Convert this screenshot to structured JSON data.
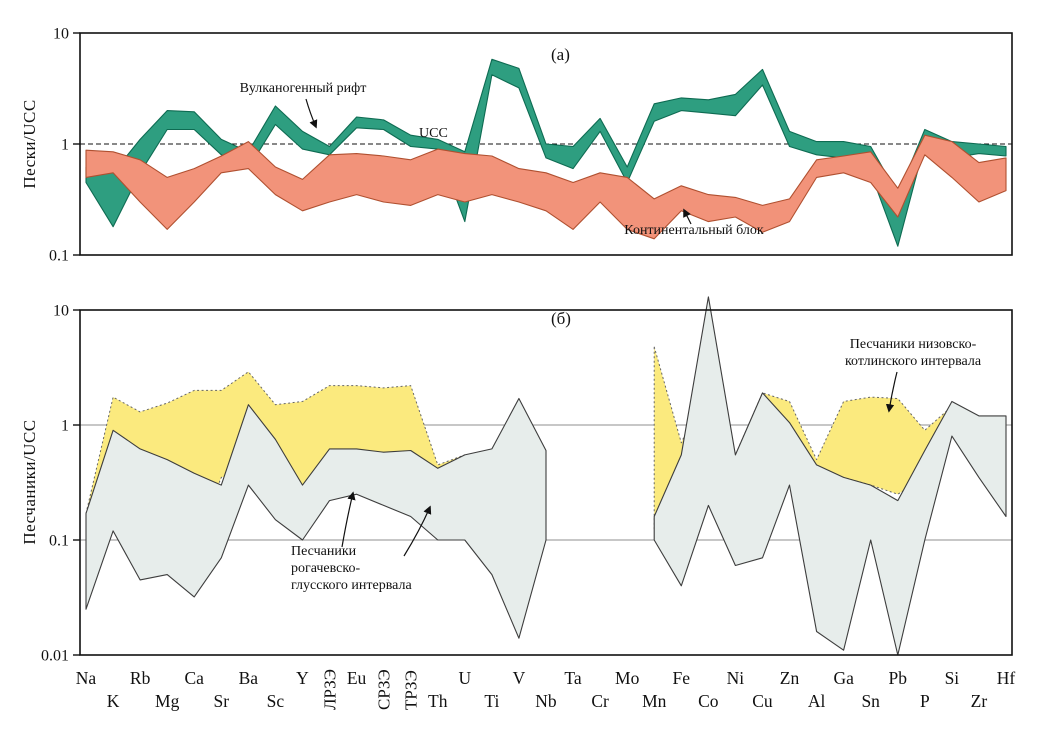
{
  "panel_a": {
    "tag": "(а)",
    "ylabel": "Пески/UCC",
    "ucc_label": "UCC",
    "band1_label": "Вулканогенный рифт",
    "band2_label": "Континентальный блок"
  },
  "panel_b": {
    "tag": "(б)",
    "ylabel": "Песчаники/UCC",
    "band1_label_line1": "Песчаники низовско-",
    "band1_label_line2": "котлинского интервала",
    "band2_label_line1": "Песчаники",
    "band2_label_line2": "рогачевско-",
    "band2_label_line3": "глусского интервала"
  },
  "chart_data": [
    {
      "type": "area",
      "title": "(а)",
      "ylabel": "Пески/UCC",
      "ylim": [
        0.1,
        10
      ],
      "yticks": [
        10,
        1,
        0.1
      ],
      "ytick_labels": [
        "10",
        "1",
        "0.1"
      ],
      "categories": [
        "Na",
        "K",
        "Rb",
        "Mg",
        "Ca",
        "Sr",
        "Ba",
        "Sc",
        "Y",
        "ЛРЗЭ",
        "Eu",
        "СРЗЭ",
        "ТРЗЭ",
        "Th",
        "U",
        "Ti",
        "V",
        "Nb",
        "Ta",
        "Cr",
        "Mo",
        "Mn",
        "Fe",
        "Co",
        "Ni",
        "Cu",
        "Zn",
        "Al",
        "Ga",
        "Sn",
        "Pb",
        "P",
        "Si",
        "Zr",
        "Hf"
      ],
      "vertical_category_indices": [
        9,
        11,
        12
      ],
      "reference_line": {
        "value": 1,
        "label": "UCC",
        "style": "dashed"
      },
      "grid": false,
      "series": [
        {
          "name": "Вулканогенный рифт",
          "fill": "#2E9E80",
          "stroke": "#0E6B52",
          "edge_style": "solid",
          "band_min": [
            0.45,
            0.18,
            0.55,
            1.35,
            1.35,
            0.8,
            0.6,
            1.5,
            0.9,
            0.8,
            1.4,
            1.35,
            0.95,
            0.9,
            0.2,
            4.2,
            3.2,
            0.75,
            0.6,
            1.3,
            0.45,
            1.6,
            2.0,
            1.9,
            1.8,
            3.4,
            0.95,
            0.8,
            0.75,
            0.55,
            0.12,
            1.0,
            0.75,
            0.82,
            0.78
          ],
          "band_max": [
            0.62,
            0.55,
            1.1,
            2.0,
            1.95,
            1.1,
            0.85,
            2.2,
            1.3,
            0.95,
            1.75,
            1.65,
            1.2,
            1.1,
            0.85,
            5.8,
            4.8,
            1.0,
            0.95,
            1.7,
            0.62,
            2.3,
            2.6,
            2.5,
            2.8,
            4.7,
            1.3,
            1.05,
            1.05,
            0.95,
            0.35,
            1.35,
            1.05,
            1.0,
            0.95
          ]
        },
        {
          "name": "Континентальный блок",
          "fill": "#F2937A",
          "stroke": "#B05030",
          "edge_style": "solid",
          "band_min": [
            0.5,
            0.55,
            0.3,
            0.17,
            0.3,
            0.55,
            0.6,
            0.35,
            0.25,
            0.3,
            0.35,
            0.3,
            0.28,
            0.35,
            0.3,
            0.35,
            0.3,
            0.25,
            0.17,
            0.3,
            0.17,
            0.14,
            0.25,
            0.2,
            0.22,
            0.16,
            0.2,
            0.5,
            0.55,
            0.45,
            0.22,
            0.8,
            0.5,
            0.3,
            0.38
          ],
          "band_max": [
            0.88,
            0.85,
            0.72,
            0.5,
            0.6,
            0.78,
            1.05,
            0.62,
            0.48,
            0.8,
            0.82,
            0.78,
            0.72,
            0.9,
            0.82,
            0.78,
            0.6,
            0.55,
            0.45,
            0.55,
            0.5,
            0.32,
            0.42,
            0.35,
            0.33,
            0.28,
            0.32,
            0.72,
            0.78,
            0.85,
            0.4,
            1.2,
            1.05,
            0.68,
            0.75
          ]
        }
      ]
    },
    {
      "type": "area",
      "title": "(б)",
      "ylabel": "Песчаники/UCC",
      "ylim": [
        0.01,
        10
      ],
      "yticks": [
        10,
        1,
        0.1,
        0.01
      ],
      "ytick_labels": [
        "10",
        "1",
        "0.1",
        "0.01"
      ],
      "gridlines": [
        1,
        0.1
      ],
      "grid": true,
      "series": [
        {
          "name": "Песчаники низовско-котлинского интервала",
          "fill": "#FBEA7E",
          "stroke": "#666666",
          "edge_style": "dotted",
          "band_min": [
            0.03,
            0.5,
            0.35,
            0.12,
            0.09,
            0.35,
            0.4,
            0.35,
            0.3,
            0.35,
            0.4,
            0.35,
            0.3,
            0.3,
            0.15,
            0.12,
            null,
            null,
            null,
            null,
            null,
            0.12,
            0.35,
            0.9,
            0.2,
            0.5,
            0.5,
            0.3,
            0.35,
            0.3,
            0.25,
            0.35,
            0.85,
            0.9,
            null
          ],
          "band_max": [
            0.17,
            1.75,
            1.3,
            1.55,
            2.0,
            2.0,
            2.9,
            1.5,
            1.6,
            2.2,
            2.2,
            2.1,
            2.2,
            0.45,
            0.55,
            0.45,
            null,
            null,
            null,
            null,
            null,
            4.8,
            0.7,
            2.3,
            0.55,
            1.9,
            1.6,
            0.5,
            1.6,
            1.75,
            1.7,
            0.9,
            1.45,
            1.1,
            null
          ]
        },
        {
          "name": "Песчаники рогачевско-глусского интервала",
          "fill": "#E7EDEB",
          "stroke": "#3D3D3D",
          "edge_style": "solid",
          "band_min": [
            0.025,
            0.12,
            0.045,
            0.05,
            0.032,
            0.07,
            0.3,
            0.15,
            0.1,
            0.22,
            0.25,
            0.2,
            0.16,
            0.1,
            0.1,
            0.05,
            0.014,
            0.1,
            null,
            null,
            null,
            0.1,
            0.04,
            0.2,
            0.06,
            0.07,
            0.3,
            0.016,
            0.011,
            0.1,
            0.01,
            0.1,
            0.8,
            0.35,
            0.16
          ],
          "band_max": [
            0.17,
            0.9,
            0.62,
            0.5,
            0.38,
            0.3,
            1.5,
            0.75,
            0.3,
            0.62,
            0.62,
            0.58,
            0.6,
            0.42,
            0.55,
            0.62,
            1.7,
            0.6,
            null,
            null,
            null,
            0.16,
            0.55,
            13,
            0.55,
            1.9,
            1.05,
            0.45,
            0.35,
            0.3,
            0.22,
            0.6,
            1.6,
            1.2,
            1.2
          ]
        }
      ]
    }
  ]
}
